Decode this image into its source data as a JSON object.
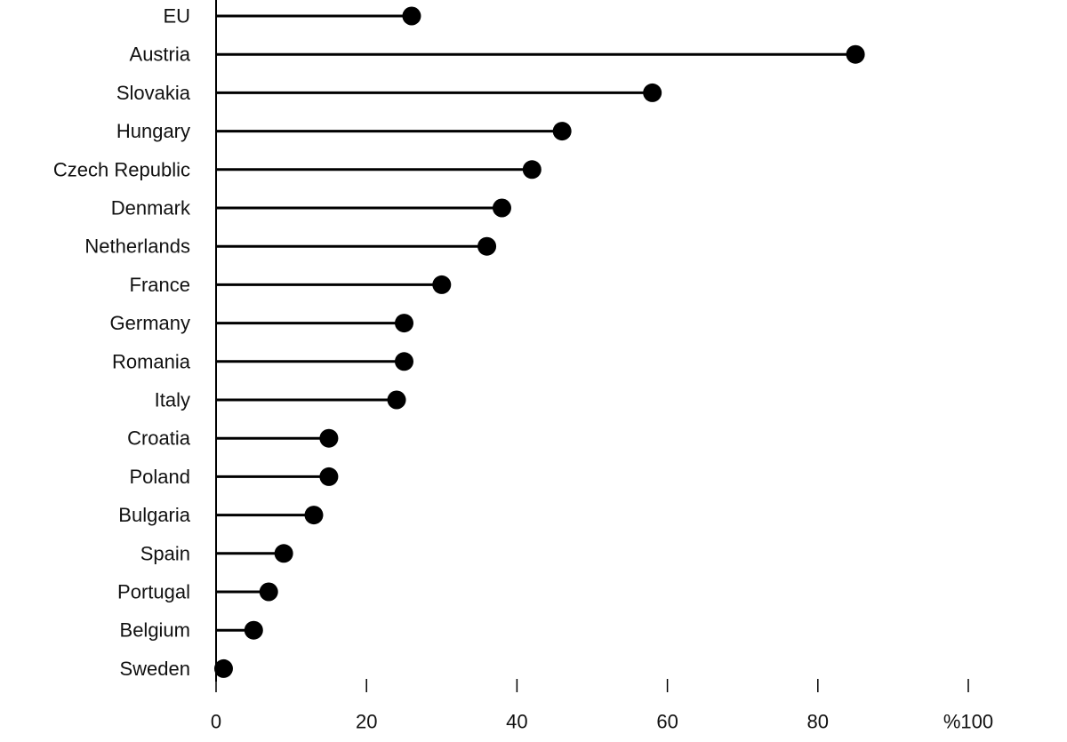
{
  "chart_data": {
    "type": "lollipop",
    "categories": [
      "EU",
      "Austria",
      "Slovakia",
      "Hungary",
      "Czech Republic",
      "Denmark",
      "Netherlands",
      "France",
      "Germany",
      "Romania",
      "Italy",
      "Croatia",
      "Poland",
      "Bulgaria",
      "Spain",
      "Portugal",
      "Belgium",
      "Sweden"
    ],
    "values": [
      26,
      85,
      58,
      46,
      42,
      38,
      36,
      30,
      25,
      25,
      24,
      15,
      15,
      13,
      9,
      7,
      5,
      1
    ],
    "x_ticks": [
      0,
      20,
      40,
      60,
      80,
      100
    ],
    "x_tick_labels": [
      "0",
      "20",
      "40",
      "60",
      "80",
      "%100"
    ],
    "xlim": [
      0,
      100
    ],
    "title": "",
    "xlabel": "",
    "ylabel": "",
    "grid": false,
    "colors": {
      "mark": "#000000",
      "axis": "#000000",
      "text": "#111111"
    }
  }
}
